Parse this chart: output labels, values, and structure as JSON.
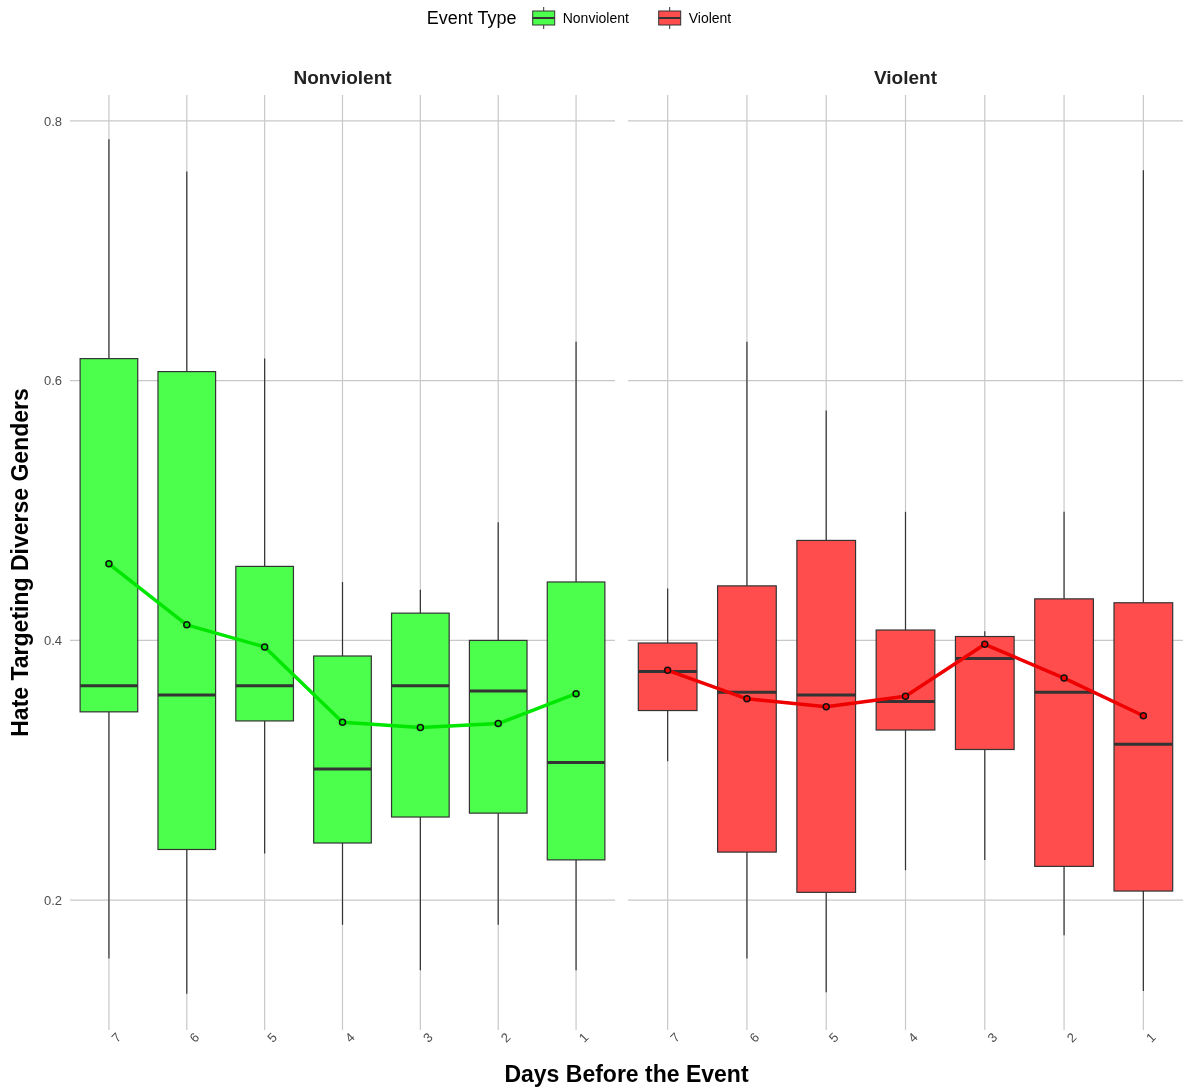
{
  "chart_data": [
    {
      "type": "box",
      "title": "Nonviolent",
      "xlabel": "Days Before the Event",
      "ylabel": "Hate Targeting Diverse Genders",
      "legend_title": "Event Type",
      "legend": "top",
      "grid": true,
      "categories": [
        "7",
        "6",
        "5",
        "4",
        "3",
        "2",
        "1"
      ],
      "ylim": [
        0.1,
        0.82
      ],
      "yticks": [
        0.2,
        0.4,
        0.6,
        0.8
      ],
      "series": [
        {
          "name": "Nonviolent",
          "type": "box",
          "color": "#4cff4c",
          "boxes": [
            {
              "low": 0.155,
              "q1": 0.345,
              "median": 0.365,
              "q3": 0.617,
              "high": 0.786
            },
            {
              "low": 0.128,
              "q1": 0.239,
              "median": 0.358,
              "q3": 0.607,
              "high": 0.761
            },
            {
              "low": 0.236,
              "q1": 0.338,
              "median": 0.365,
              "q3": 0.457,
              "high": 0.617
            },
            {
              "low": 0.181,
              "q1": 0.244,
              "median": 0.301,
              "q3": 0.388,
              "high": 0.445
            },
            {
              "low": 0.146,
              "q1": 0.264,
              "median": 0.365,
              "q3": 0.421,
              "high": 0.439
            },
            {
              "low": 0.181,
              "q1": 0.267,
              "median": 0.361,
              "q3": 0.4,
              "high": 0.491
            },
            {
              "low": 0.146,
              "q1": 0.231,
              "median": 0.306,
              "q3": 0.445,
              "high": 0.63
            }
          ]
        },
        {
          "type": "line",
          "color": "#00e600",
          "marker": "circle",
          "values": [
            0.459,
            0.412,
            0.395,
            0.337,
            0.333,
            0.336,
            0.359
          ]
        }
      ]
    },
    {
      "type": "box",
      "title": "Violent",
      "legend": "top",
      "grid": true,
      "tick_labels": "x",
      "categories": [
        "7",
        "6",
        "5",
        "4",
        "3",
        "2",
        "1"
      ],
      "ylim": [
        0.1,
        0.82
      ],
      "yticks": [
        0.2,
        0.4,
        0.6,
        0.8
      ],
      "series": [
        {
          "name": "Violent",
          "type": "box",
          "color": "#ff4d4d",
          "boxes": [
            {
              "low": 0.307,
              "q1": 0.346,
              "median": 0.376,
              "q3": 0.398,
              "high": 0.44
            },
            {
              "low": 0.155,
              "q1": 0.237,
              "median": 0.36,
              "q3": 0.442,
              "high": 0.63
            },
            {
              "low": 0.129,
              "q1": 0.206,
              "median": 0.358,
              "q3": 0.477,
              "high": 0.577
            },
            {
              "low": 0.223,
              "q1": 0.331,
              "median": 0.353,
              "q3": 0.408,
              "high": 0.499
            },
            {
              "low": 0.231,
              "q1": 0.316,
              "median": 0.386,
              "q3": 0.403,
              "high": 0.407
            },
            {
              "low": 0.173,
              "q1": 0.226,
              "median": 0.36,
              "q3": 0.432,
              "high": 0.499
            },
            {
              "low": 0.13,
              "q1": 0.207,
              "median": 0.32,
              "q3": 0.429,
              "high": 0.762
            }
          ]
        },
        {
          "type": "line",
          "color": "#ee0000",
          "marker": "circle",
          "values": [
            0.377,
            0.355,
            0.349,
            0.357,
            0.397,
            0.371,
            0.342
          ]
        }
      ]
    }
  ]
}
